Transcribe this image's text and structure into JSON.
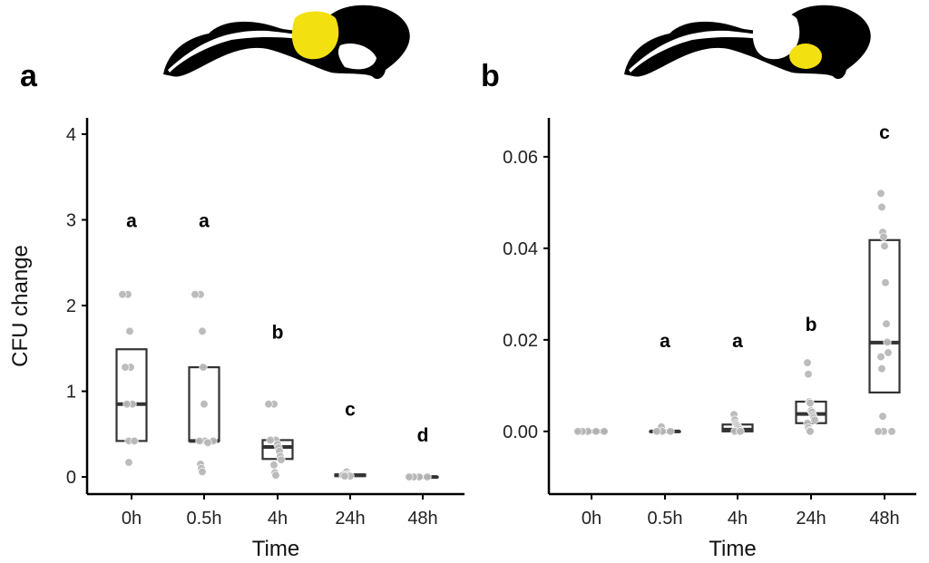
{
  "chart_data": [
    {
      "type": "box",
      "panel_label": "a",
      "ylabel": "CFU change",
      "xlabel": "Time",
      "categories": [
        "0h",
        "0.5h",
        "4h",
        "24h",
        "48h"
      ],
      "ylim": [
        -0.2,
        4.19
      ],
      "yticks": [
        0,
        1,
        2,
        3,
        4
      ],
      "ytick_labels": [
        "0",
        "1",
        "2",
        "3",
        "4"
      ],
      "highlight_color": "#f2e011",
      "point_color": "#b8b8b8",
      "boxes": [
        {
          "q1": 0.42,
          "median": 0.85,
          "q3": 1.49
        },
        {
          "q1": 0.42,
          "median": 0.42,
          "q3": 1.28
        },
        {
          "q1": 0.21,
          "median": 0.35,
          "q3": 0.43
        },
        {
          "q1": 0.01,
          "median": 0.02,
          "q3": 0.03
        },
        {
          "q1": 0.0,
          "median": 0.0,
          "q3": 0.0
        }
      ],
      "points": [
        [
          2.13,
          2.13,
          1.7,
          1.28,
          1.28,
          0.85,
          0.85,
          0.42,
          0.42,
          0.42,
          0.17
        ],
        [
          2.13,
          2.13,
          1.7,
          1.28,
          0.85,
          0.42,
          0.42,
          0.42,
          0.4,
          0.15,
          0.1,
          0.06
        ],
        [
          0.85,
          0.85,
          0.43,
          0.43,
          0.38,
          0.34,
          0.3,
          0.24,
          0.2,
          0.14,
          0.05,
          0.02
        ],
        [
          0.06,
          0.03,
          0.02,
          0.02,
          0.01,
          0.01
        ],
        [
          0,
          0,
          0,
          0
        ]
      ],
      "significance_letters": [
        {
          "label": "a",
          "y": 3.0
        },
        {
          "label": "a",
          "y": 3.0
        },
        {
          "label": "b",
          "y": 1.7
        },
        {
          "label": "c",
          "y": 0.8
        },
        {
          "label": "d",
          "y": 0.5
        }
      ]
    },
    {
      "type": "box",
      "panel_label": "b",
      "ylabel": "",
      "xlabel": "Time",
      "categories": [
        "0h",
        "0.5h",
        "4h",
        "24h",
        "48h"
      ],
      "ylim": [
        -0.0137,
        0.0685
      ],
      "yticks": [
        0,
        0.02,
        0.04,
        0.06
      ],
      "ytick_labels": [
        "0.00",
        "0.02",
        "0.04",
        "0.06"
      ],
      "highlight_color": "#f2e011",
      "point_color": "#b8b8b8",
      "boxes": [
        {
          "q1": 0.0,
          "median": 0.0,
          "q3": 0.0
        },
        {
          "q1": 0.0,
          "median": 0.0,
          "q3": 0.0
        },
        {
          "q1": 0.0,
          "median": 0.0004,
          "q3": 0.0015
        },
        {
          "q1": 0.0018,
          "median": 0.0038,
          "q3": 0.0065
        },
        {
          "q1": 0.0085,
          "median": 0.0194,
          "q3": 0.0418
        }
      ],
      "points": [
        [
          0,
          0,
          0,
          0,
          0
        ],
        [
          0.001,
          0,
          0,
          0
        ],
        [
          0.0037,
          0.0025,
          0.0018,
          0.0015,
          0.0012,
          0.0008,
          0.0004,
          0,
          0,
          0
        ],
        [
          0.015,
          0.0125,
          0.0065,
          0.0062,
          0.0045,
          0.0042,
          0.0035,
          0.003,
          0.0025,
          0.0018,
          0.0008,
          0.0002,
          0
        ],
        [
          0.052,
          0.049,
          0.0435,
          0.0425,
          0.0405,
          0.0325,
          0.0235,
          0.0195,
          0.0172,
          0.0163,
          0.0137,
          0.0033,
          0,
          0,
          0
        ]
      ],
      "significance_letters": [
        {
          "label": "",
          "y": 0
        },
        {
          "label": "a",
          "y": 0.02
        },
        {
          "label": "a",
          "y": 0.02
        },
        {
          "label": "b",
          "y": 0.0235
        },
        {
          "label": "c",
          "y": 0.0655
        }
      ]
    }
  ]
}
